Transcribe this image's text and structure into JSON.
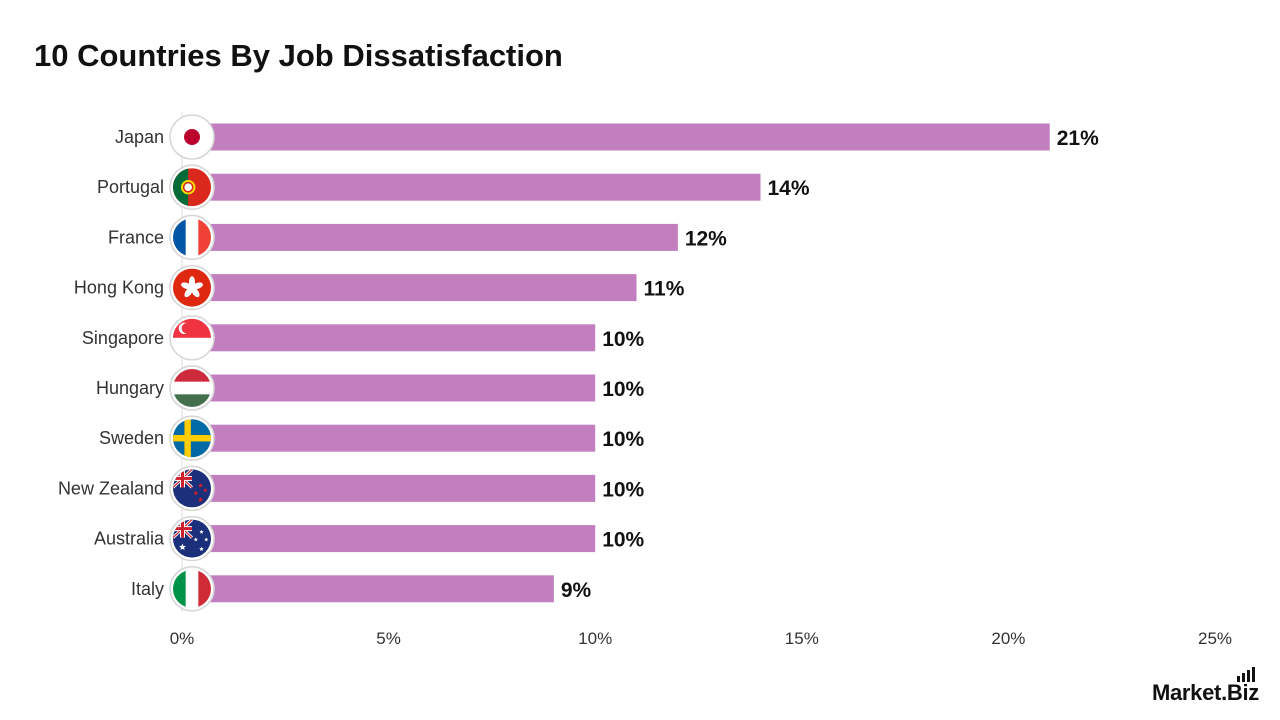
{
  "title": "10 Countries By Job Dissatisfaction",
  "logo": {
    "text": "Market.Biz"
  },
  "colors": {
    "bar": "#c27fbf",
    "axis": "#dddddd"
  },
  "chart_data": {
    "type": "bar",
    "orientation": "horizontal",
    "title": "10 Countries By Job Dissatisfaction",
    "xlabel": "",
    "ylabel": "",
    "categories": [
      "Japan",
      "Portugal",
      "France",
      "Hong Kong",
      "Singapore",
      "Hungary",
      "Sweden",
      "New Zealand",
      "Australia",
      "Italy"
    ],
    "values": [
      21,
      14,
      12,
      11,
      10,
      10,
      10,
      10,
      10,
      9
    ],
    "value_labels": [
      "21%",
      "14%",
      "12%",
      "11%",
      "10%",
      "10%",
      "10%",
      "10%",
      "10%",
      "9%"
    ],
    "xlim": [
      0,
      25
    ],
    "x_ticks": [
      0,
      5,
      10,
      15,
      20,
      25
    ],
    "x_tick_labels": [
      "0%",
      "5%",
      "10%",
      "15%",
      "20%",
      "25%"
    ],
    "grid": false,
    "legend": "none",
    "icons": [
      "japan-flag-icon",
      "portugal-flag-icon",
      "france-flag-icon",
      "hong-kong-flag-icon",
      "singapore-flag-icon",
      "hungary-flag-icon",
      "sweden-flag-icon",
      "new-zealand-flag-icon",
      "australia-flag-icon",
      "italy-flag-icon"
    ]
  }
}
